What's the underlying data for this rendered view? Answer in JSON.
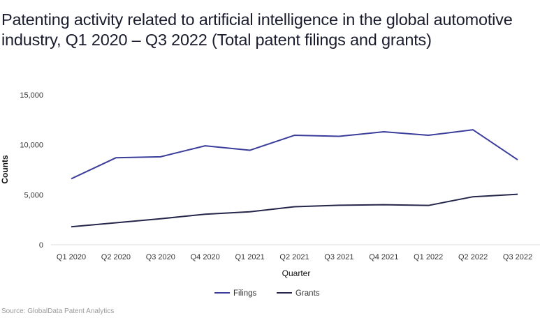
{
  "chart_data": {
    "type": "line",
    "title": "Patenting activity related to artificial intelligence in the global automotive industry, Q1 2020 – Q3 2022 (Total patent filings and grants)",
    "xlabel": "Quarter",
    "ylabel": "Counts",
    "ylim": [
      0,
      15000
    ],
    "yticks": [
      0,
      5000,
      10000,
      15000
    ],
    "ytick_labels": [
      "0",
      "5,000",
      "10,000",
      "15,000"
    ],
    "grid": false,
    "legend_position": "bottom-center",
    "categories": [
      "Q1 2020",
      "Q2 2020",
      "Q3 2020",
      "Q4 2020",
      "Q1 2021",
      "Q2 2021",
      "Q3 2021",
      "Q4 2021",
      "Q1 2022",
      "Q2 2022",
      "Q3 2022"
    ],
    "series": [
      {
        "name": "Filings",
        "color": "#3b3d9a",
        "values": [
          6600,
          8700,
          8800,
          9900,
          9450,
          10950,
          10850,
          11300,
          10950,
          11500,
          8500
        ]
      },
      {
        "name": "Grants",
        "color": "#24264a",
        "values": [
          1800,
          2200,
          2600,
          3050,
          3300,
          3800,
          3950,
          4000,
          3930,
          4800,
          5050
        ]
      }
    ],
    "source": "Source: GlobalData Patent Analytics"
  }
}
